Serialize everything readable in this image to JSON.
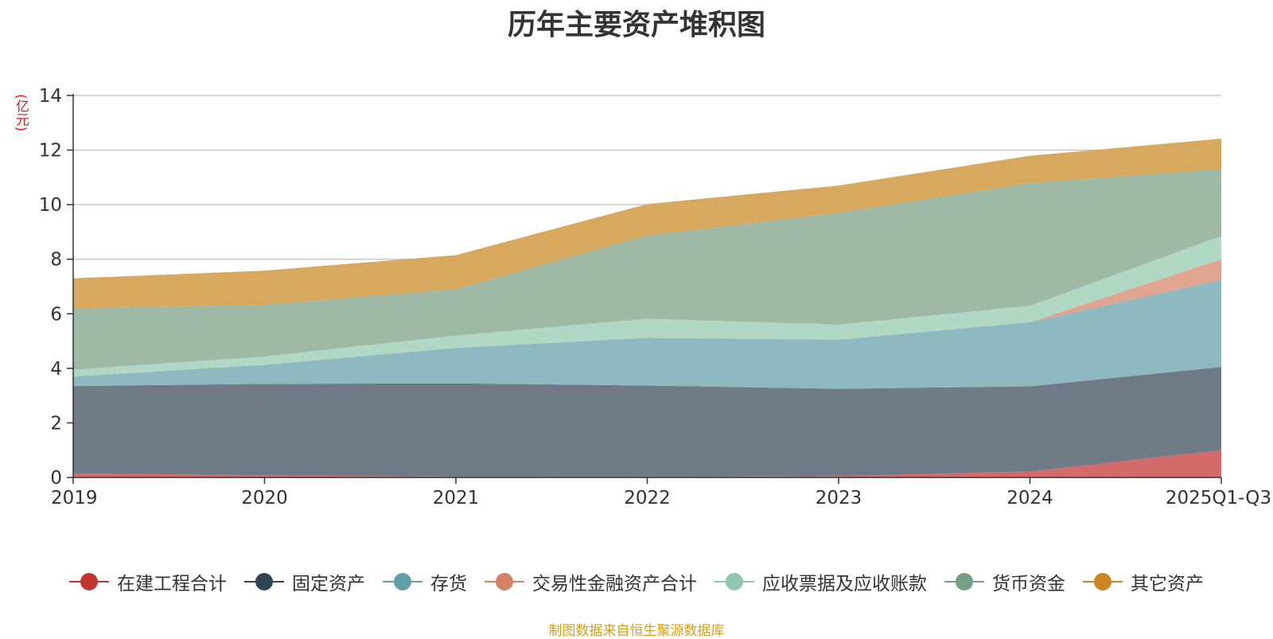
{
  "chart_data": {
    "type": "area",
    "stacked": true,
    "title": "历年主要资产堆积图",
    "unit": "(亿元)",
    "categories": [
      "2019",
      "2020",
      "2021",
      "2022",
      "2023",
      "2024",
      "2025Q1-Q3"
    ],
    "ylim": [
      0,
      14
    ],
    "yticks": [
      "0",
      "2",
      "4",
      "6",
      "8",
      "10",
      "12",
      "14"
    ],
    "grid": true,
    "legend_position": "bottom",
    "series": [
      {
        "name": "在建工程合计",
        "color": "#c23531",
        "fill": "#d46a6a",
        "values": [
          0.15,
          0.08,
          0.03,
          0.02,
          0.05,
          0.22,
          1.0
        ]
      },
      {
        "name": "固定资产",
        "color": "#2f4554",
        "fill": "#6e7b86",
        "values": [
          3.2,
          3.35,
          3.42,
          3.35,
          3.2,
          3.12,
          3.05
        ]
      },
      {
        "name": "存货",
        "color": "#61a0a8",
        "fill": "#8fb9c0",
        "values": [
          0.35,
          0.7,
          1.3,
          1.75,
          1.8,
          2.35,
          3.2
        ]
      },
      {
        "name": "交易性金融资产合计",
        "color": "#d48265",
        "fill": "#dfa590",
        "values": [
          0.0,
          0.0,
          0.0,
          0.0,
          0.0,
          0.0,
          0.75
        ]
      },
      {
        "name": "应收票据及应收账款",
        "color": "#91c7ae",
        "fill": "#b0d8c5",
        "values": [
          0.25,
          0.3,
          0.45,
          0.7,
          0.55,
          0.6,
          0.85
        ]
      },
      {
        "name": "货币资金",
        "color": "#749f83",
        "fill": "#9eb9a6",
        "values": [
          2.25,
          1.9,
          1.7,
          3.05,
          4.1,
          4.5,
          2.45
        ]
      },
      {
        "name": "其它资产",
        "color": "#ca8622",
        "fill": "#d7a95e",
        "values": [
          1.1,
          1.25,
          1.25,
          1.15,
          1.0,
          1.0,
          1.12
        ]
      }
    ]
  },
  "source_note": "制图数据来自恒生聚源数据库"
}
